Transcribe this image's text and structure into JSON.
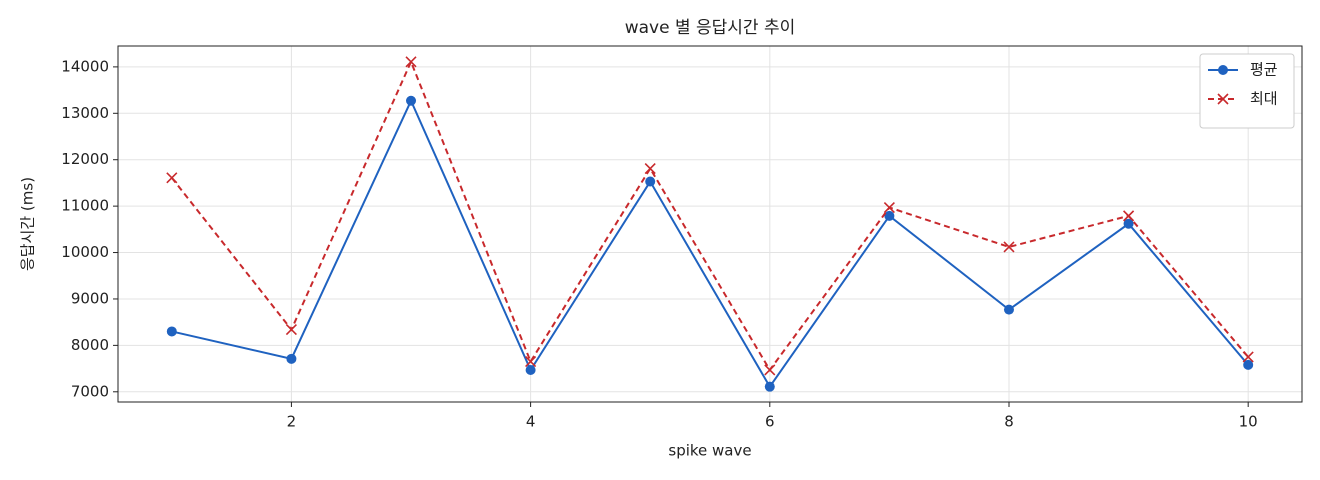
{
  "chart_data": {
    "type": "line",
    "title": "wave 별 응답시간 추이",
    "xlabel": "spike wave",
    "ylabel": "응답시간 (ms)",
    "x": [
      1,
      2,
      3,
      4,
      5,
      6,
      7,
      8,
      9,
      10
    ],
    "series": [
      {
        "name": "평균",
        "color": "#1f62c0",
        "marker": "circle",
        "linestyle": "solid",
        "values": [
          8300,
          7710,
          13270,
          7470,
          11530,
          7110,
          10790,
          8770,
          10620,
          7580
        ]
      },
      {
        "name": "최대",
        "color": "#c8292c",
        "marker": "x",
        "linestyle": "dashed",
        "values": [
          11610,
          8340,
          14110,
          7650,
          11810,
          7470,
          10970,
          10120,
          10790,
          7750
        ]
      }
    ],
    "xlim": [
      0.55,
      10.45
    ],
    "ylim": [
      6780,
      14450
    ],
    "xticks": [
      2,
      4,
      6,
      8,
      10
    ],
    "yticks": [
      7000,
      8000,
      9000,
      10000,
      11000,
      12000,
      13000,
      14000
    ],
    "grid": true,
    "legend": "upper right"
  }
}
